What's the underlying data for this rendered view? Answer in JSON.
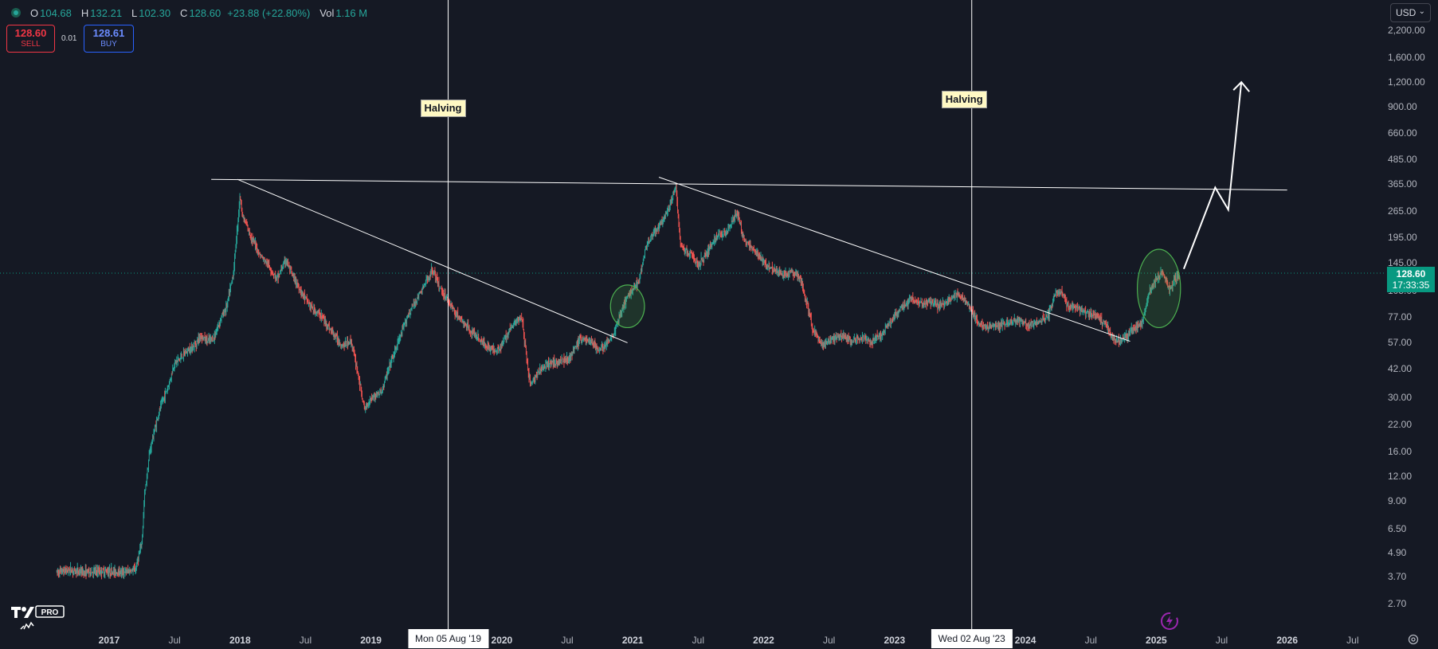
{
  "legend": {
    "open_label": "O",
    "open": "104.68",
    "high_label": "H",
    "high": "132.21",
    "low_label": "L",
    "low": "102.30",
    "close_label": "C",
    "close": "128.60",
    "change": "+23.88 (+22.80%)",
    "vol_label": "Vol",
    "volume": "1.16 M"
  },
  "trade": {
    "sell_price": "128.60",
    "sell_label": "SELL",
    "spread": "0.01",
    "buy_price": "128.61",
    "buy_label": "BUY"
  },
  "currency": "USD",
  "current_price": {
    "price": "128.60",
    "countdown": "17:33:35"
  },
  "halving_label": "Halving",
  "crosshair_dates": [
    "Mon 05 Aug '19",
    "Wed 02 Aug '23"
  ],
  "colors": {
    "background": "#151924",
    "up": "#26a69a",
    "down": "#ef5350",
    "price_line": "#089981",
    "annotation": "#ffffff",
    "highlight": "#4caf50"
  },
  "chart_data": {
    "type": "candlestick",
    "y_scale": "log",
    "ylim": [
      2.2,
      2400
    ],
    "y_ticks": [
      {
        "value": 2200,
        "label": "2,200.00"
      },
      {
        "value": 1600,
        "label": "1,600.00"
      },
      {
        "value": 1200,
        "label": "1,200.00"
      },
      {
        "value": 900,
        "label": "900.00"
      },
      {
        "value": 660,
        "label": "660.00"
      },
      {
        "value": 485,
        "label": "485.00"
      },
      {
        "value": 365,
        "label": "365.00"
      },
      {
        "value": 265,
        "label": "265.00"
      },
      {
        "value": 195,
        "label": "195.00"
      },
      {
        "value": 145,
        "label": "145.00"
      },
      {
        "value": 105,
        "label": "105.00"
      },
      {
        "value": 77,
        "label": "77.00"
      },
      {
        "value": 57,
        "label": "57.00"
      },
      {
        "value": 42,
        "label": "42.00"
      },
      {
        "value": 30,
        "label": "30.00"
      },
      {
        "value": 22,
        "label": "22.00"
      },
      {
        "value": 16,
        "label": "16.00"
      },
      {
        "value": 12,
        "label": "12.00"
      },
      {
        "value": 9,
        "label": "9.00"
      },
      {
        "value": 6.5,
        "label": "6.50"
      },
      {
        "value": 4.9,
        "label": "4.90"
      },
      {
        "value": 3.7,
        "label": "3.70"
      },
      {
        "value": 2.7,
        "label": "2.70"
      }
    ],
    "x_ticks": [
      {
        "t": 2017.0,
        "label": "2017",
        "year": true
      },
      {
        "t": 2017.5,
        "label": "Jul",
        "year": false
      },
      {
        "t": 2018.0,
        "label": "2018",
        "year": true
      },
      {
        "t": 2018.5,
        "label": "Jul",
        "year": false
      },
      {
        "t": 2019.0,
        "label": "2019",
        "year": true
      },
      {
        "t": 2020.0,
        "label": "2020",
        "year": true
      },
      {
        "t": 2020.5,
        "label": "Jul",
        "year": false
      },
      {
        "t": 2021.0,
        "label": "2021",
        "year": true
      },
      {
        "t": 2021.5,
        "label": "Jul",
        "year": false
      },
      {
        "t": 2022.0,
        "label": "2022",
        "year": true
      },
      {
        "t": 2022.5,
        "label": "Jul",
        "year": false
      },
      {
        "t": 2023.0,
        "label": "2023",
        "year": true
      },
      {
        "t": 2024.0,
        "label": "2024",
        "year": true
      },
      {
        "t": 2024.5,
        "label": "Jul",
        "year": false
      },
      {
        "t": 2025.0,
        "label": "2025",
        "year": true
      },
      {
        "t": 2025.5,
        "label": "Jul",
        "year": false
      },
      {
        "t": 2026.0,
        "label": "2026",
        "year": true
      },
      {
        "t": 2026.5,
        "label": "Jul",
        "year": false
      }
    ],
    "price_path": [
      [
        2016.6,
        3.9
      ],
      [
        2016.7,
        4.0
      ],
      [
        2016.8,
        3.9
      ],
      [
        2016.95,
        3.95
      ],
      [
        2017.1,
        3.9
      ],
      [
        2017.2,
        4.0
      ],
      [
        2017.25,
        5.5
      ],
      [
        2017.27,
        9.5
      ],
      [
        2017.31,
        16
      ],
      [
        2017.35,
        21
      ],
      [
        2017.4,
        28
      ],
      [
        2017.45,
        34
      ],
      [
        2017.5,
        45
      ],
      [
        2017.55,
        48
      ],
      [
        2017.6,
        52
      ],
      [
        2017.65,
        55
      ],
      [
        2017.7,
        62
      ],
      [
        2017.75,
        58
      ],
      [
        2017.8,
        60
      ],
      [
        2017.85,
        75
      ],
      [
        2017.9,
        88
      ],
      [
        2017.95,
        130
      ],
      [
        2018.0,
        320
      ],
      [
        2018.02,
        250
      ],
      [
        2018.08,
        200
      ],
      [
        2018.15,
        160
      ],
      [
        2018.22,
        140
      ],
      [
        2018.28,
        120
      ],
      [
        2018.35,
        150
      ],
      [
        2018.4,
        125
      ],
      [
        2018.48,
        100
      ],
      [
        2018.55,
        85
      ],
      [
        2018.62,
        78
      ],
      [
        2018.7,
        65
      ],
      [
        2018.78,
        55
      ],
      [
        2018.85,
        58
      ],
      [
        2018.9,
        40
      ],
      [
        2018.95,
        26
      ],
      [
        2019.0,
        30
      ],
      [
        2019.08,
        32
      ],
      [
        2019.15,
        45
      ],
      [
        2019.22,
        60
      ],
      [
        2019.28,
        78
      ],
      [
        2019.35,
        95
      ],
      [
        2019.42,
        115
      ],
      [
        2019.47,
        135
      ],
      [
        2019.52,
        110
      ],
      [
        2019.58,
        95
      ],
      [
        2019.65,
        80
      ],
      [
        2019.72,
        70
      ],
      [
        2019.8,
        62
      ],
      [
        2019.88,
        55
      ],
      [
        2019.95,
        52
      ],
      [
        2020.0,
        55
      ],
      [
        2020.05,
        65
      ],
      [
        2020.1,
        72
      ],
      [
        2020.15,
        78
      ],
      [
        2020.2,
        42
      ],
      [
        2020.22,
        35
      ],
      [
        2020.3,
        42
      ],
      [
        2020.38,
        45
      ],
      [
        2020.45,
        46
      ],
      [
        2020.52,
        48
      ],
      [
        2020.6,
        60
      ],
      [
        2020.68,
        58
      ],
      [
        2020.74,
        52
      ],
      [
        2020.8,
        56
      ],
      [
        2020.86,
        65
      ],
      [
        2020.92,
        85
      ],
      [
        2020.97,
        100
      ],
      [
        2021.02,
        110
      ],
      [
        2021.05,
        120
      ],
      [
        2021.1,
        175
      ],
      [
        2021.15,
        200
      ],
      [
        2021.22,
        230
      ],
      [
        2021.28,
        275
      ],
      [
        2021.33,
        360
      ],
      [
        2021.36,
        190
      ],
      [
        2021.4,
        165
      ],
      [
        2021.45,
        160
      ],
      [
        2021.5,
        140
      ],
      [
        2021.58,
        170
      ],
      [
        2021.65,
        200
      ],
      [
        2021.72,
        210
      ],
      [
        2021.78,
        250
      ],
      [
        2021.8,
        260
      ],
      [
        2021.85,
        190
      ],
      [
        2021.92,
        170
      ],
      [
        2022.0,
        145
      ],
      [
        2022.08,
        135
      ],
      [
        2022.15,
        125
      ],
      [
        2022.22,
        130
      ],
      [
        2022.28,
        120
      ],
      [
        2022.33,
        90
      ],
      [
        2022.38,
        65
      ],
      [
        2022.45,
        55
      ],
      [
        2022.52,
        60
      ],
      [
        2022.6,
        62
      ],
      [
        2022.68,
        58
      ],
      [
        2022.75,
        60
      ],
      [
        2022.82,
        58
      ],
      [
        2022.9,
        62
      ],
      [
        2022.98,
        75
      ],
      [
        2023.05,
        85
      ],
      [
        2023.12,
        95
      ],
      [
        2023.2,
        90
      ],
      [
        2023.28,
        92
      ],
      [
        2023.35,
        88
      ],
      [
        2023.42,
        95
      ],
      [
        2023.48,
        100
      ],
      [
        2023.53,
        95
      ],
      [
        2023.58,
        85
      ],
      [
        2023.65,
        70
      ],
      [
        2023.72,
        68
      ],
      [
        2023.8,
        70
      ],
      [
        2023.88,
        72
      ],
      [
        2023.95,
        75
      ],
      [
        2024.02,
        70
      ],
      [
        2024.1,
        72
      ],
      [
        2024.18,
        80
      ],
      [
        2024.22,
        100
      ],
      [
        2024.27,
        105
      ],
      [
        2024.32,
        88
      ],
      [
        2024.4,
        86
      ],
      [
        2024.48,
        80
      ],
      [
        2024.55,
        78
      ],
      [
        2024.62,
        70
      ],
      [
        2024.67,
        60
      ],
      [
        2024.72,
        58
      ],
      [
        2024.78,
        62
      ],
      [
        2024.85,
        68
      ],
      [
        2024.9,
        75
      ],
      [
        2024.95,
        105
      ],
      [
        2025.0,
        120
      ],
      [
        2025.05,
        130
      ],
      [
        2025.1,
        105
      ],
      [
        2025.14,
        120
      ],
      [
        2025.18,
        128.6
      ]
    ],
    "annotations": {
      "resistance_line": [
        [
          2017.78,
          385
        ],
        [
          2026.0,
          340
        ]
      ],
      "trendline_1": [
        [
          2017.98,
          385
        ],
        [
          2020.96,
          57
        ]
      ],
      "trendline_2": [
        [
          2021.2,
          395
        ],
        [
          2024.8,
          58
        ]
      ],
      "halvings": [
        2019.59,
        2023.59
      ],
      "ellipses": [
        {
          "t": 2020.96,
          "price": 88,
          "rx_years": 0.13,
          "price_low": 68,
          "price_high": 112
        },
        {
          "t": 2025.02,
          "price": 115,
          "rx_years": 0.165,
          "price_low": 68,
          "price_high": 170
        }
      ],
      "projection_arrow": [
        [
          2025.21,
          135
        ],
        [
          2025.45,
          350
        ],
        [
          2025.55,
          270
        ],
        [
          2025.65,
          1200
        ]
      ]
    }
  }
}
